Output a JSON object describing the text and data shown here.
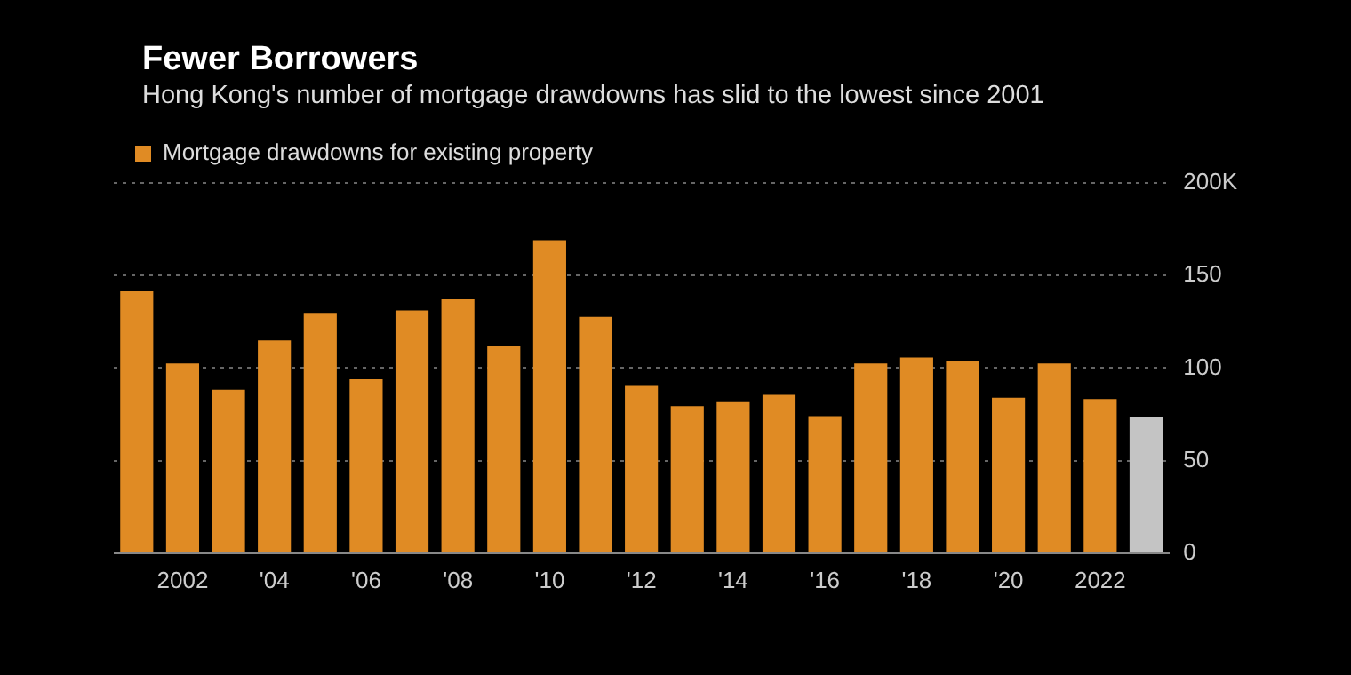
{
  "chart_data": {
    "type": "bar",
    "title": "Fewer Borrowers",
    "subtitle": "Hong Kong's number of mortgage drawdowns has slid to the lowest since 2001",
    "categories": [
      null,
      "2002",
      null,
      "'04",
      null,
      "'06",
      null,
      "'08",
      null,
      "'10",
      null,
      "'12",
      null,
      "'14",
      null,
      "'16",
      null,
      "'18",
      null,
      "'20",
      null,
      "2022",
      null
    ],
    "series": [
      {
        "name": "Mortgage drawdowns for existing property",
        "color": "#e08b24",
        "values": [
          141.5,
          102.5,
          88.3,
          114.9,
          129.8,
          94,
          131.2,
          137.2,
          111.7,
          169.1,
          127.7,
          90.4,
          79.4,
          81.6,
          85.5,
          74.1,
          102.5,
          105.7,
          103.5,
          84,
          102.5,
          83.3,
          73.8
        ],
        "colors": [
          "#e08b24",
          "#e08b24",
          "#e08b24",
          "#e08b24",
          "#e08b24",
          "#e08b24",
          "#e08b24",
          "#e08b24",
          "#e08b24",
          "#e08b24",
          "#e08b24",
          "#e08b24",
          "#e08b24",
          "#e08b24",
          "#e08b24",
          "#e08b24",
          "#e08b24",
          "#e08b24",
          "#e08b24",
          "#e08b24",
          "#e08b24",
          "#e08b24",
          "#c4c4c4"
        ]
      }
    ],
    "ylim": [
      0,
      200
    ],
    "yticks": [
      0,
      50,
      100,
      150,
      {
        "value": 200,
        "label": "200K"
      }
    ],
    "grid": "y",
    "legend": "top left"
  }
}
